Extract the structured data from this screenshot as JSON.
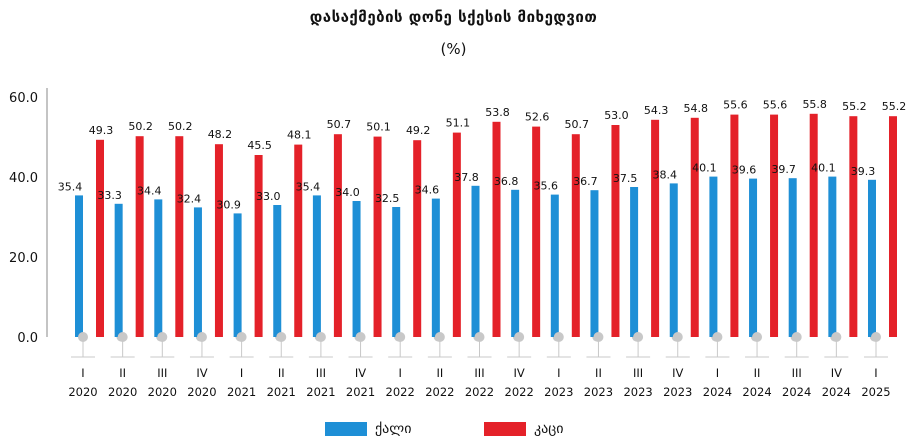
{
  "title": "დასაქმების დონე სქესის მიხედვით",
  "subtitle": "(%)",
  "colors": {
    "women": "#1e8fd6",
    "men": "#e42129",
    "marker": "#c8c8c8",
    "axis": "#888888"
  },
  "chart_data": {
    "type": "bar",
    "ylim": [
      0,
      60
    ],
    "yticks": [
      "0.0",
      "20.0",
      "40.0",
      "60.0"
    ],
    "categories": [
      {
        "q": "I",
        "y": "2020"
      },
      {
        "q": "II",
        "y": "2020"
      },
      {
        "q": "III",
        "y": "2020"
      },
      {
        "q": "IV",
        "y": "2020"
      },
      {
        "q": "I",
        "y": "2021"
      },
      {
        "q": "II",
        "y": "2021"
      },
      {
        "q": "III",
        "y": "2021"
      },
      {
        "q": "IV",
        "y": "2021"
      },
      {
        "q": "I",
        "y": "2022"
      },
      {
        "q": "II",
        "y": "2022"
      },
      {
        "q": "III",
        "y": "2022"
      },
      {
        "q": "IV",
        "y": "2022"
      },
      {
        "q": "I",
        "y": "2023"
      },
      {
        "q": "II",
        "y": "2023"
      },
      {
        "q": "III",
        "y": "2023"
      },
      {
        "q": "IV",
        "y": "2023"
      },
      {
        "q": "I",
        "y": "2024"
      },
      {
        "q": "II",
        "y": "2024"
      },
      {
        "q": "III",
        "y": "2024"
      },
      {
        "q": "IV",
        "y": "2024"
      },
      {
        "q": "I",
        "y": "2025"
      }
    ],
    "series": [
      {
        "name": "ქალი",
        "values": [
          35.4,
          33.3,
          34.4,
          32.4,
          30.9,
          33.0,
          35.4,
          34.0,
          32.5,
          34.6,
          37.8,
          36.8,
          35.6,
          36.7,
          37.5,
          38.4,
          40.1,
          39.6,
          39.7,
          40.1,
          39.3
        ]
      },
      {
        "name": "კაცი",
        "values": [
          49.3,
          50.2,
          50.2,
          48.2,
          45.5,
          48.1,
          50.7,
          50.1,
          49.2,
          51.1,
          53.8,
          52.6,
          50.7,
          53.0,
          54.3,
          54.8,
          55.6,
          55.6,
          55.8,
          55.2,
          55.2
        ]
      }
    ],
    "legend": "bottom-center",
    "grid": false
  }
}
